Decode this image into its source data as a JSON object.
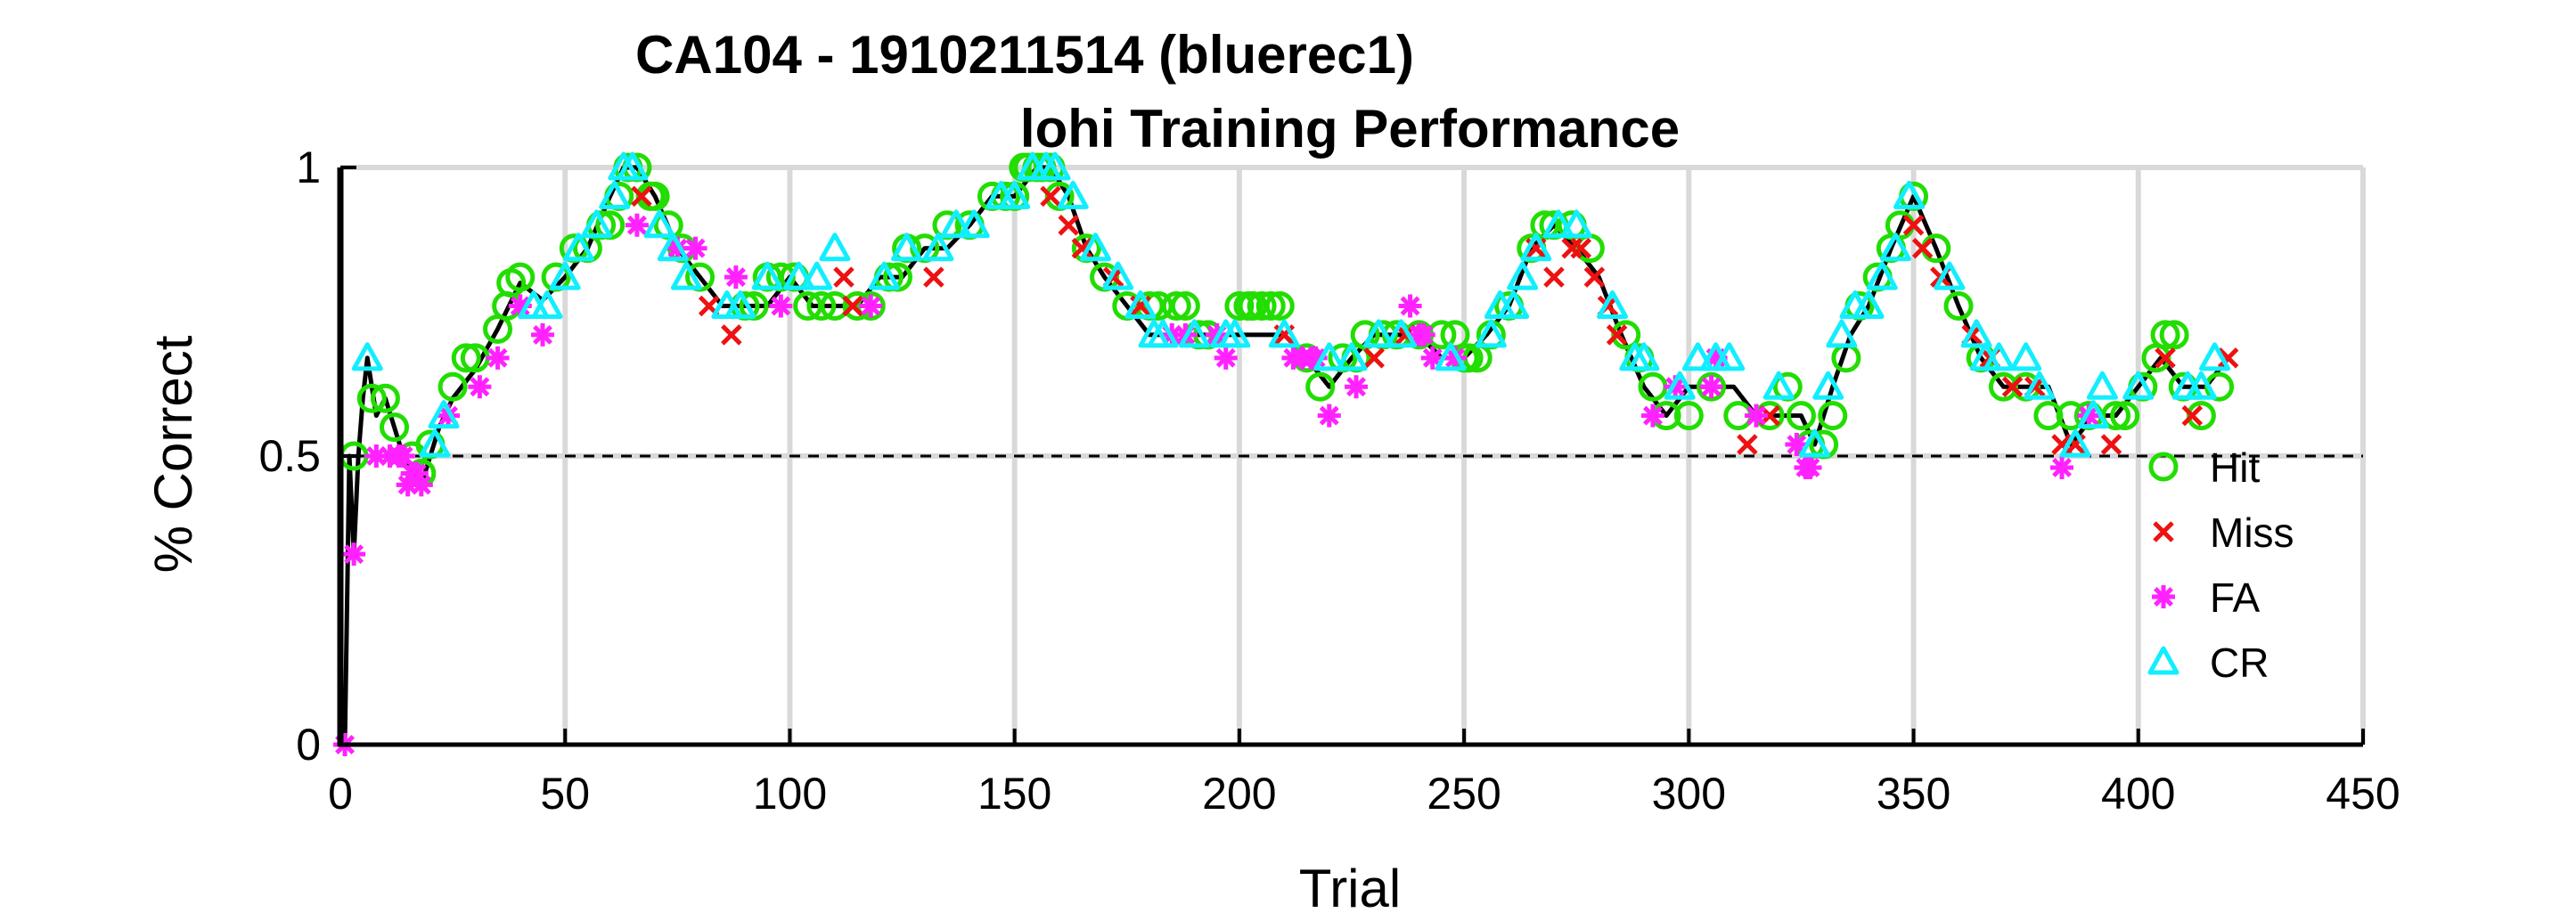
{
  "chart_data": {
    "type": "scatter",
    "title": [
      "CA104 - 1910211514 (bluerec1)",
      "lohi Training Performance"
    ],
    "xlabel": "Trial",
    "ylabel": "% Correct",
    "xlim": [
      0,
      450
    ],
    "ylim": [
      0,
      1
    ],
    "xticks": [
      0,
      50,
      100,
      150,
      200,
      250,
      300,
      350,
      400,
      450
    ],
    "yticks": [
      0,
      0.5,
      1
    ],
    "xtick_labels": [
      "0",
      "50",
      "100",
      "150",
      "200",
      "250",
      "300",
      "350",
      "400",
      "450"
    ],
    "ytick_labels": [
      "0",
      "0.5",
      "1"
    ],
    "grid": true,
    "reference_line": 0.5,
    "legend_position": "right",
    "colors": {
      "line": "#000000",
      "Hit": "#22dd00",
      "Miss": "#ee1111",
      "FA": "#ff22ff",
      "CR": "#11eeff",
      "grid": "#d9d9d9"
    },
    "series": [
      {
        "name": "Hit",
        "marker": "circle",
        "x": [
          3,
          7,
          10,
          12,
          16,
          18,
          20,
          25,
          28,
          30,
          35,
          37,
          38,
          40,
          48,
          52,
          55,
          58,
          60,
          62,
          64,
          66,
          69,
          70,
          73,
          76,
          80,
          90,
          92,
          95,
          98,
          101,
          104,
          107,
          110,
          115,
          118,
          122,
          124,
          126,
          130,
          135,
          140,
          145,
          148,
          150,
          152,
          153,
          155,
          156,
          158,
          160,
          166,
          170,
          175,
          180,
          182,
          186,
          188,
          191,
          193,
          200,
          202,
          203,
          205,
          207,
          209,
          215,
          218,
          223,
          226,
          228,
          232,
          235,
          240,
          245,
          248,
          250,
          251,
          253,
          256,
          260,
          265,
          268,
          270,
          274,
          278,
          286,
          289,
          292,
          295,
          300,
          305,
          311,
          318,
          322,
          325,
          327,
          330,
          332,
          335,
          338,
          342,
          345,
          347,
          350,
          355,
          360,
          365,
          370,
          375,
          380,
          385,
          389,
          395,
          397,
          401,
          404,
          406,
          408,
          410,
          414,
          418
        ],
        "y": [
          0.5,
          0.6,
          0.6,
          0.55,
          0.5,
          0.47,
          0.52,
          0.62,
          0.67,
          0.67,
          0.72,
          0.76,
          0.8,
          0.81,
          0.81,
          0.86,
          0.86,
          0.9,
          0.9,
          0.95,
          1,
          1,
          0.95,
          0.95,
          0.9,
          0.86,
          0.81,
          0.76,
          0.76,
          0.81,
          0.81,
          0.81,
          0.76,
          0.76,
          0.76,
          0.76,
          0.76,
          0.81,
          0.81,
          0.86,
          0.86,
          0.9,
          0.9,
          0.95,
          0.95,
          0.95,
          1,
          1,
          1,
          1,
          1,
          0.95,
          0.86,
          0.81,
          0.76,
          0.76,
          0.76,
          0.76,
          0.76,
          0.71,
          0.71,
          0.76,
          0.76,
          0.76,
          0.76,
          0.76,
          0.76,
          0.67,
          0.62,
          0.67,
          0.67,
          0.71,
          0.71,
          0.71,
          0.71,
          0.71,
          0.71,
          0.67,
          0.67,
          0.67,
          0.71,
          0.76,
          0.86,
          0.9,
          0.9,
          0.9,
          0.86,
          0.71,
          0.67,
          0.62,
          0.57,
          0.57,
          0.62,
          0.57,
          0.57,
          0.62,
          0.57,
          0.52,
          0.52,
          0.57,
          0.67,
          0.76,
          0.81,
          0.86,
          0.9,
          0.95,
          0.86,
          0.76,
          0.67,
          0.62,
          0.62,
          0.57,
          0.57,
          0.57,
          0.57,
          0.57,
          0.62,
          0.67,
          0.71,
          0.71,
          0.62,
          0.57,
          0.62
        ]
      },
      {
        "name": "Miss",
        "marker": "x",
        "x": [
          67,
          82,
          87,
          112,
          114,
          132,
          158,
          162,
          165,
          172,
          178,
          210,
          230,
          237,
          266,
          270,
          274,
          276,
          279,
          282,
          284,
          313,
          318,
          350,
          352,
          356,
          363,
          367,
          372,
          377,
          383,
          386,
          394,
          406,
          412,
          420
        ],
        "y": [
          0.95,
          0.76,
          0.71,
          0.81,
          0.76,
          0.81,
          0.95,
          0.9,
          0.86,
          0.81,
          0.76,
          0.71,
          0.67,
          0.71,
          0.86,
          0.81,
          0.86,
          0.86,
          0.81,
          0.76,
          0.71,
          0.52,
          0.57,
          0.9,
          0.86,
          0.81,
          0.71,
          0.67,
          0.62,
          0.62,
          0.52,
          0.52,
          0.52,
          0.67,
          0.57,
          0.67
        ]
      },
      {
        "name": "FA",
        "marker": "asterisk",
        "x": [
          1,
          3,
          8,
          11,
          13,
          14,
          15,
          16,
          17,
          18,
          24,
          31,
          35,
          40,
          45,
          66,
          75,
          79,
          88,
          98,
          118,
          185,
          188,
          195,
          197,
          212,
          214,
          216,
          217,
          220,
          226,
          238,
          240,
          241,
          243,
          248,
          292,
          297,
          305,
          306,
          315,
          324,
          326,
          327,
          383,
          389
        ],
        "y": [
          0,
          0.33,
          0.5,
          0.5,
          0.5,
          0.5,
          0.45,
          0.47,
          0.47,
          0.45,
          0.57,
          0.62,
          0.67,
          0.76,
          0.71,
          0.9,
          0.86,
          0.86,
          0.81,
          0.76,
          0.76,
          0.71,
          0.71,
          0.71,
          0.67,
          0.67,
          0.67,
          0.67,
          0.67,
          0.57,
          0.62,
          0.76,
          0.71,
          0.71,
          0.67,
          0.67,
          0.57,
          0.62,
          0.62,
          0.67,
          0.57,
          0.52,
          0.48,
          0.48,
          0.48,
          0.57
        ]
      },
      {
        "name": "CR",
        "marker": "triangle",
        "x": [
          6,
          21,
          23,
          43,
          46,
          50,
          53,
          57,
          61,
          63,
          65,
          71,
          74,
          77,
          86,
          89,
          95,
          102,
          106,
          110,
          121,
          126,
          133,
          137,
          141,
          147,
          150,
          154,
          157,
          159,
          163,
          168,
          173,
          178,
          181,
          183,
          190,
          197,
          199,
          210,
          220,
          225,
          231,
          236,
          247,
          256,
          258,
          261,
          263,
          266,
          271,
          275,
          283,
          288,
          290,
          298,
          302,
          306,
          309,
          320,
          328,
          331,
          334,
          337,
          340,
          343,
          346,
          349,
          358,
          364,
          366,
          369,
          375,
          378,
          386,
          390,
          392,
          400,
          411,
          414,
          417
        ],
        "y": [
          0.67,
          0.52,
          0.57,
          0.76,
          0.76,
          0.81,
          0.86,
          0.9,
          0.95,
          1,
          1,
          0.9,
          0.86,
          0.81,
          0.76,
          0.76,
          0.81,
          0.81,
          0.81,
          0.86,
          0.81,
          0.86,
          0.86,
          0.9,
          0.9,
          0.95,
          0.95,
          1,
          1,
          1,
          0.95,
          0.86,
          0.81,
          0.76,
          0.71,
          0.71,
          0.71,
          0.71,
          0.71,
          0.71,
          0.67,
          0.67,
          0.71,
          0.71,
          0.67,
          0.71,
          0.76,
          0.76,
          0.81,
          0.86,
          0.9,
          0.9,
          0.76,
          0.67,
          0.67,
          0.62,
          0.67,
          0.67,
          0.67,
          0.62,
          0.52,
          0.62,
          0.71,
          0.76,
          0.76,
          0.81,
          0.86,
          0.95,
          0.81,
          0.71,
          0.67,
          0.67,
          0.67,
          0.62,
          0.52,
          0.57,
          0.62,
          0.62,
          0.62,
          0.62,
          0.67
        ]
      }
    ],
    "line": {
      "x": [
        0,
        1,
        2,
        3,
        4,
        5,
        6,
        8,
        10,
        12,
        14,
        16,
        18,
        20,
        22,
        25,
        30,
        35,
        40,
        45,
        50,
        55,
        60,
        63,
        66,
        70,
        75,
        80,
        85,
        90,
        95,
        100,
        105,
        110,
        115,
        120,
        125,
        130,
        135,
        140,
        145,
        150,
        155,
        158,
        162,
        166,
        170,
        175,
        180,
        185,
        190,
        195,
        200,
        205,
        210,
        215,
        220,
        225,
        230,
        235,
        240,
        245,
        250,
        255,
        260,
        265,
        270,
        275,
        280,
        285,
        290,
        295,
        300,
        305,
        310,
        315,
        320,
        325,
        328,
        332,
        336,
        340,
        345,
        350,
        355,
        360,
        365,
        370,
        375,
        380,
        385,
        390,
        395,
        400,
        405,
        410,
        415,
        420
      ],
      "y": [
        0,
        0,
        0.5,
        0.33,
        0.5,
        0.6,
        0.67,
        0.57,
        0.6,
        0.55,
        0.5,
        0.47,
        0.45,
        0.5,
        0.55,
        0.6,
        0.65,
        0.72,
        0.8,
        0.77,
        0.81,
        0.86,
        0.95,
        1,
        1,
        0.95,
        0.86,
        0.81,
        0.76,
        0.76,
        0.76,
        0.81,
        0.76,
        0.76,
        0.76,
        0.81,
        0.81,
        0.86,
        0.86,
        0.9,
        0.95,
        0.95,
        1,
        1,
        0.95,
        0.86,
        0.81,
        0.76,
        0.71,
        0.71,
        0.71,
        0.71,
        0.71,
        0.71,
        0.71,
        0.67,
        0.62,
        0.67,
        0.71,
        0.71,
        0.71,
        0.67,
        0.67,
        0.71,
        0.76,
        0.86,
        0.9,
        0.86,
        0.81,
        0.71,
        0.62,
        0.57,
        0.62,
        0.62,
        0.62,
        0.57,
        0.57,
        0.57,
        0.52,
        0.62,
        0.71,
        0.76,
        0.86,
        0.95,
        0.86,
        0.76,
        0.67,
        0.62,
        0.62,
        0.62,
        0.52,
        0.57,
        0.57,
        0.62,
        0.67,
        0.62,
        0.62,
        0.67
      ]
    },
    "legend": [
      "Hit",
      "Miss",
      "FA",
      "CR"
    ]
  }
}
